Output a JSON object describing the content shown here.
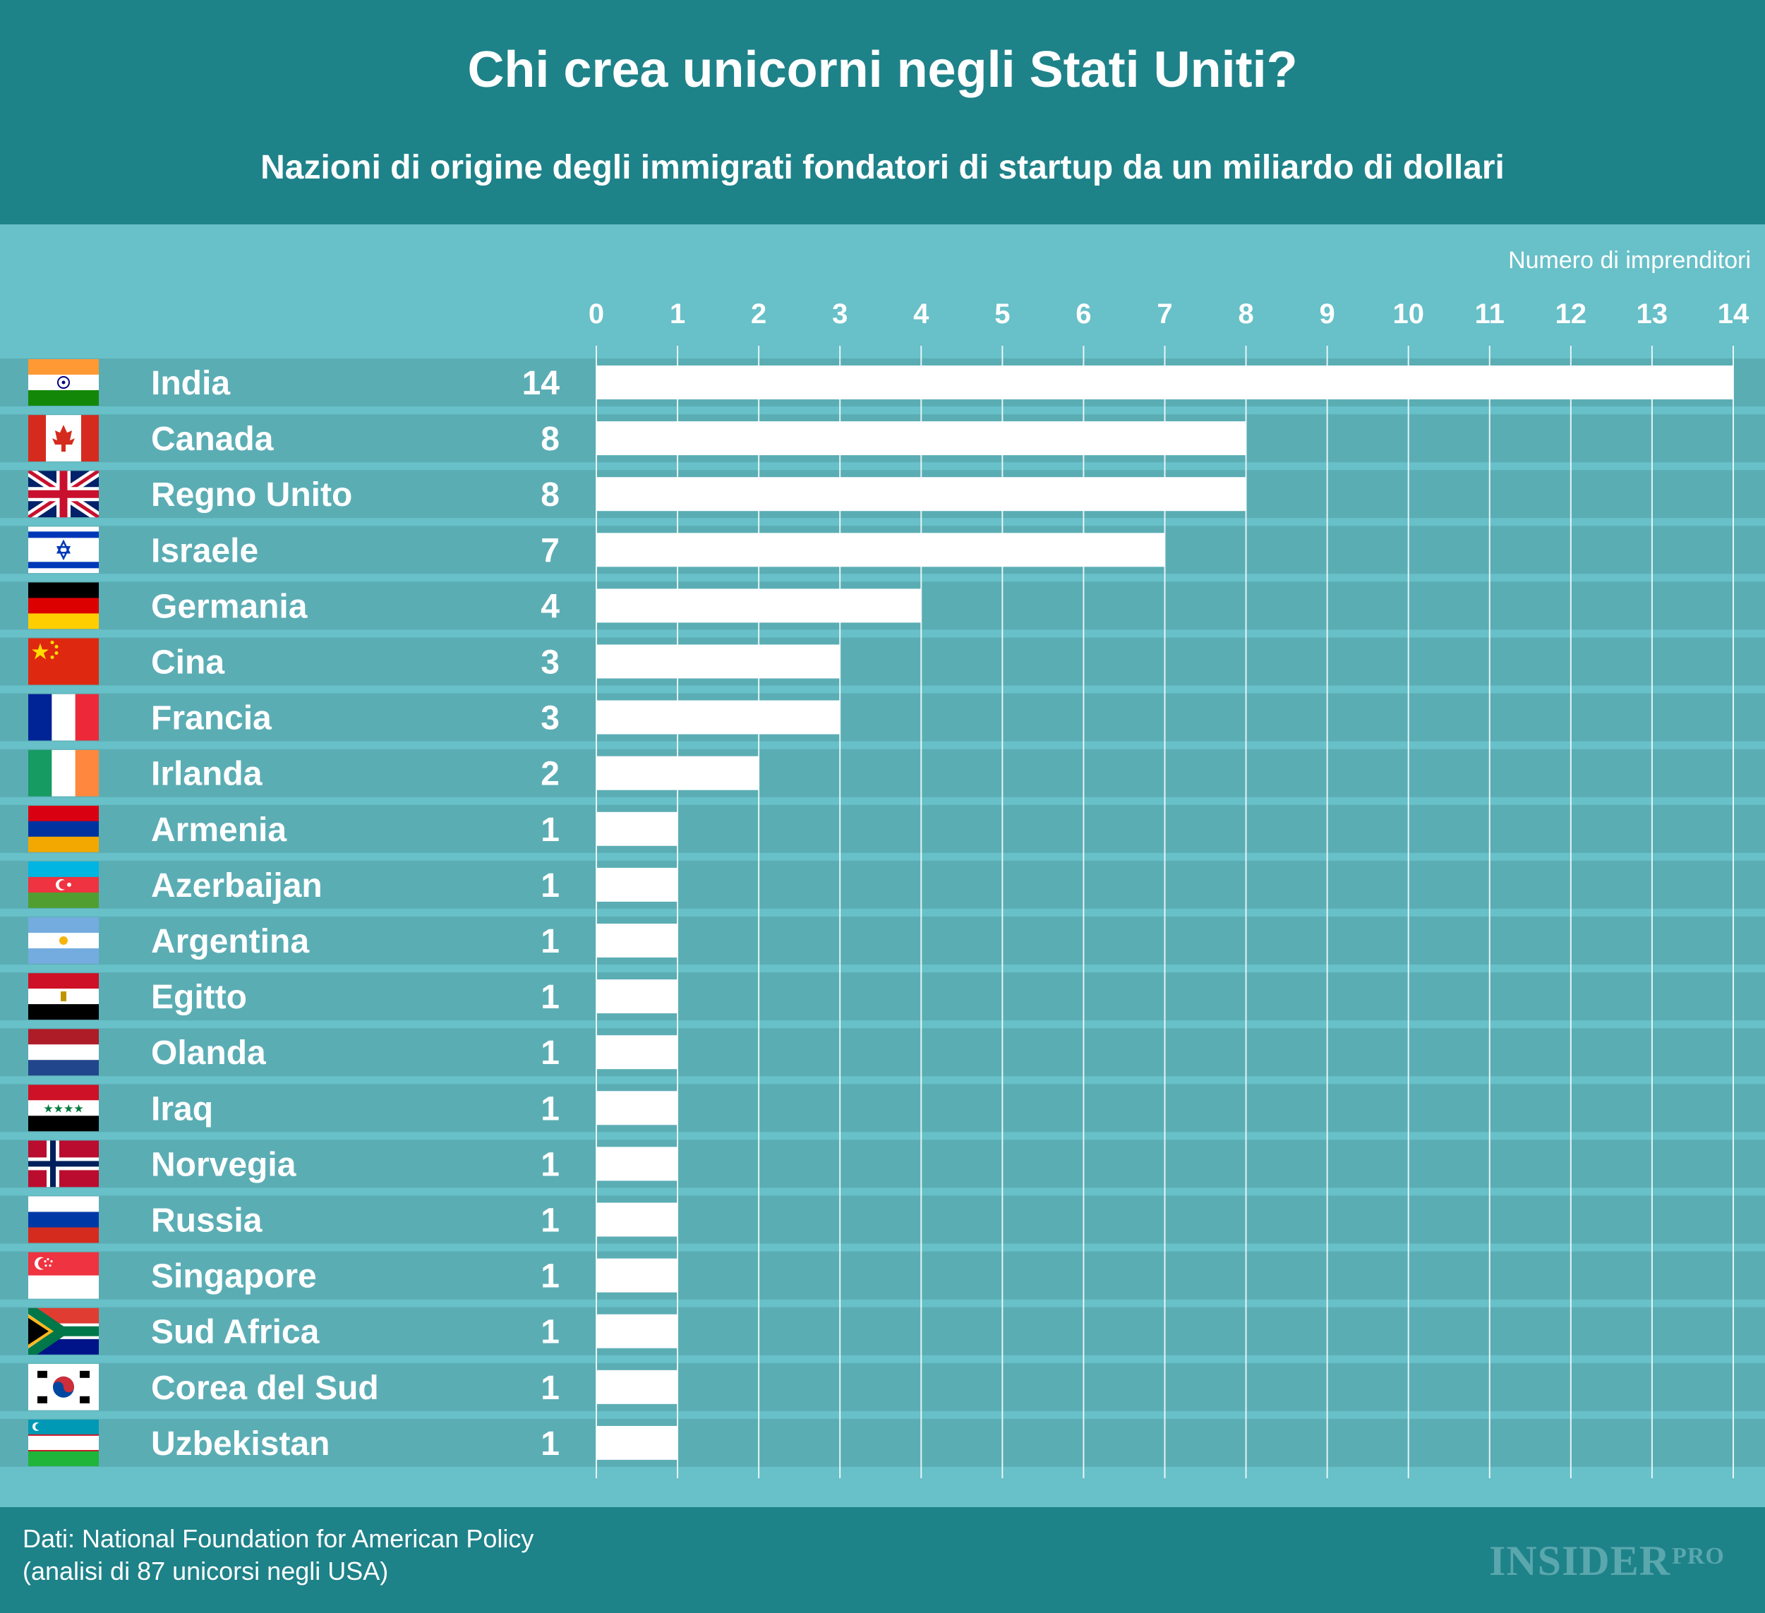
{
  "header": {
    "title": "Chi crea unicorni negli Stati Uniti?",
    "subtitle": "Nazioni di origine degli immigrati fondatori di startup da un miliardo di dollari"
  },
  "footer": {
    "source_line1": "Dati: National Foundation for American Policy",
    "source_line2": "(analisi di 87 unicorsi negli USA)",
    "logo": "INSIDER",
    "logo_suffix": "PRO"
  },
  "colors": {
    "header_bg": "#1e8289",
    "chart_bg": "#68c0c8",
    "row_band": "#5badb4",
    "bar": "#ffffff"
  },
  "chart_data": {
    "type": "bar",
    "orientation": "horizontal",
    "title": "Chi crea unicorni negli Stati Uniti?",
    "subtitle": "Nazioni di origine degli immigrati fondatori di startup da un miliardo di dollari",
    "xlabel": "Numero di imprenditori",
    "ylabel": "",
    "xlim": [
      0,
      14
    ],
    "ticks": [
      0,
      1,
      2,
      3,
      4,
      5,
      6,
      7,
      8,
      9,
      10,
      11,
      12,
      13,
      14
    ],
    "grid": true,
    "categories": [
      "India",
      "Canada",
      "Regno Unito",
      "Israele",
      "Germania",
      "Cina",
      "Francia",
      "Irlanda",
      "Armenia",
      "Azerbaijan",
      "Argentina",
      "Egitto",
      "Olanda",
      "Iraq",
      "Norvegia",
      "Russia",
      "Singapore",
      "Sud Africa",
      "Corea del Sud",
      "Uzbekistan"
    ],
    "values": [
      14,
      8,
      8,
      7,
      4,
      3,
      3,
      2,
      1,
      1,
      1,
      1,
      1,
      1,
      1,
      1,
      1,
      1,
      1,
      1
    ],
    "flags": [
      "india-flag-icon",
      "canada-flag-icon",
      "uk-flag-icon",
      "israel-flag-icon",
      "germany-flag-icon",
      "china-flag-icon",
      "france-flag-icon",
      "ireland-flag-icon",
      "armenia-flag-icon",
      "azerbaijan-flag-icon",
      "argentina-flag-icon",
      "egypt-flag-icon",
      "netherlands-flag-icon",
      "iraq-flag-icon",
      "norway-flag-icon",
      "russia-flag-icon",
      "singapore-flag-icon",
      "south-africa-flag-icon",
      "south-korea-flag-icon",
      "uzbekistan-flag-icon"
    ]
  }
}
